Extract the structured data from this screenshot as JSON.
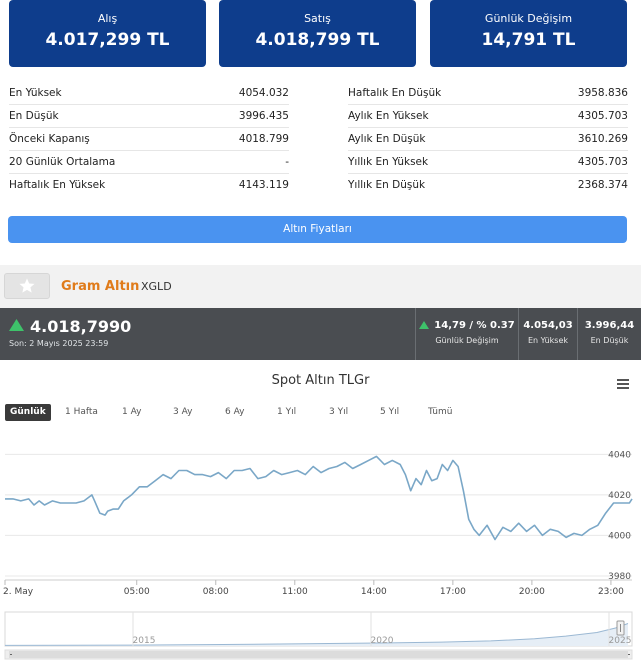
{
  "cards": [
    {
      "label": "Alış",
      "value": "4.017,299 TL"
    },
    {
      "label": "Satış",
      "value": "4.018,799 TL"
    },
    {
      "label": "Günlük Değişim",
      "value": "14,791 TL"
    }
  ],
  "stats_left": [
    {
      "label": "En Yüksek",
      "value": "4054.032"
    },
    {
      "label": "En Düşük",
      "value": "3996.435"
    },
    {
      "label": "Önceki Kapanış",
      "value": "4018.799"
    },
    {
      "label": "20 Günlük Ortalama",
      "value": "-"
    },
    {
      "label": "Haftalık En Yüksek",
      "value": "4143.119"
    }
  ],
  "stats_right": [
    {
      "label": "Haftalık En Düşük",
      "value": "3958.836"
    },
    {
      "label": "Aylık En Yüksek",
      "value": "4305.703"
    },
    {
      "label": "Aylık En Düşük",
      "value": "3610.269"
    },
    {
      "label": "Yıllık En Yüksek",
      "value": "4305.703"
    },
    {
      "label": "Yıllık En Düşük",
      "value": "2368.374"
    }
  ],
  "prices_button": "Altın Fiyatları",
  "instrument": {
    "name": "Gram Altın",
    "code": "XGLD"
  },
  "price_bar": {
    "price": "4.018,7990",
    "time": "Son: 2 Mayıs 2025 23:59",
    "change": "14,79 / % 0.37",
    "change_label": "Günlük Değişim",
    "high": "4.054,03",
    "high_label": "En Yüksek",
    "low": "3.996,44",
    "low_label": "En Düşük"
  },
  "ranges": [
    {
      "label": "Günlük",
      "active": true
    },
    {
      "label": "1 Hafta",
      "active": false
    },
    {
      "label": "1 Ay",
      "active": false
    },
    {
      "label": "3 Ay",
      "active": false
    },
    {
      "label": "6 Ay",
      "active": false
    },
    {
      "label": "1 Yıl",
      "active": false
    },
    {
      "label": "3 Yıl",
      "active": false
    },
    {
      "label": "5 Yıl",
      "active": false
    },
    {
      "label": "Tümü",
      "active": false
    }
  ],
  "chart_data": {
    "type": "line",
    "title": "Spot Altın TLGr",
    "x_labels": [
      "2. May",
      "05:00",
      "08:00",
      "11:00",
      "14:00",
      "17:00",
      "20:00",
      "23:00"
    ],
    "x_label_hours": [
      0,
      5,
      8,
      11,
      14,
      17,
      20,
      23
    ],
    "y_ticks": [
      3980,
      4000,
      4020,
      4040
    ],
    "ylim": [
      3978,
      4052
    ],
    "xlim": [
      0,
      23.8
    ],
    "line_color": "#7aa7c7",
    "series": [
      {
        "x": [
          0,
          0.3,
          0.6,
          0.9,
          1.1,
          1.3,
          1.5,
          1.8,
          2.1,
          2.4,
          2.7,
          3,
          3.3,
          3.4,
          3.6,
          3.8,
          3.9,
          4.1,
          4.3,
          4.5,
          4.8,
          5.1,
          5.4,
          5.7,
          6,
          6.3,
          6.6,
          6.9,
          7.2,
          7.5,
          7.8,
          8.1,
          8.4,
          8.7,
          9,
          9.3,
          9.6,
          9.9,
          10.2,
          10.5,
          10.8,
          11.1,
          11.4,
          11.7,
          12,
          12.3,
          12.6,
          12.9,
          13.2,
          13.5,
          13.8,
          14.1,
          14.4,
          14.7,
          15,
          15.2,
          15.4,
          15.6,
          15.8,
          16,
          16.2,
          16.4,
          16.6,
          16.8,
          17,
          17.2,
          17.4,
          17.6,
          17.8,
          18,
          18.3,
          18.6,
          18.9,
          19.2,
          19.5,
          19.8,
          20.1,
          20.4,
          20.7,
          21,
          21.3,
          21.6,
          21.9,
          22.2,
          22.5,
          22.8,
          23.1,
          23.4,
          23.7,
          23.8
        ],
        "values": [
          4018,
          4018,
          4017,
          4018,
          4015,
          4017,
          4015,
          4017,
          4016,
          4016,
          4016,
          4017,
          4020,
          4017,
          4011,
          4010,
          4012,
          4013,
          4013,
          4017,
          4020,
          4024,
          4024,
          4027,
          4030,
          4028,
          4032,
          4032,
          4030,
          4030,
          4029,
          4031,
          4028,
          4032,
          4032,
          4033,
          4028,
          4029,
          4032,
          4030,
          4031,
          4032,
          4030,
          4034,
          4031,
          4033,
          4034,
          4036,
          4033,
          4035,
          4037,
          4039,
          4035,
          4037,
          4035,
          4030,
          4022,
          4028,
          4025,
          4032,
          4027,
          4028,
          4035,
          4032,
          4037,
          4034,
          4022,
          4008,
          4003,
          4000,
          4005,
          3998,
          4004,
          4002,
          4006,
          4002,
          4005,
          4000,
          4003,
          4002,
          3999,
          4001,
          4000,
          4003,
          4005,
          4011,
          4016,
          4016,
          4016,
          4018
        ]
      }
    ],
    "navigator": {
      "labels": [
        "2015",
        "2020",
        "2025"
      ]
    }
  }
}
